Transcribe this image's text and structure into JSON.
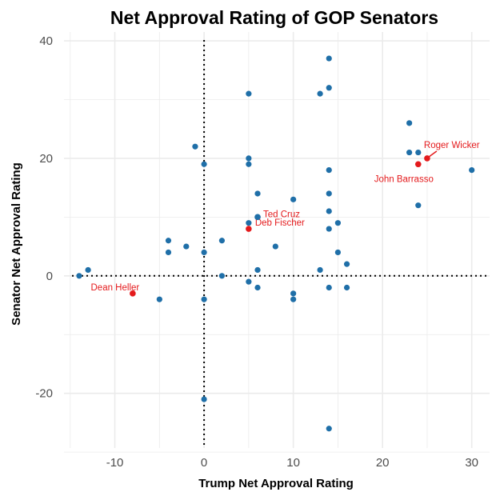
{
  "chart_data": {
    "type": "scatter",
    "title": "Net Approval Rating of GOP Senators",
    "xlabel": "Trump Net Approval Rating",
    "ylabel": "Senator Net Approval Rating",
    "xlim": [
      -15.7,
      32
    ],
    "ylim": [
      -29.3,
      41.5
    ],
    "xticks": [
      -10,
      0,
      10,
      20,
      30
    ],
    "yticks": [
      -20,
      0,
      20,
      40
    ],
    "grid": true,
    "reference_lines": {
      "x": 0,
      "y": 0,
      "style": "dotted"
    },
    "colors": {
      "default": "#1f6fa8",
      "highlight": "#e41a1c",
      "grid": "#ebebeb"
    },
    "points": [
      [
        -14,
        0
      ],
      [
        -13,
        1
      ],
      [
        -5,
        -4
      ],
      [
        -4,
        6
      ],
      [
        -4,
        4
      ],
      [
        -2,
        5
      ],
      [
        -1,
        22
      ],
      [
        0,
        19
      ],
      [
        0,
        4
      ],
      [
        0,
        -4
      ],
      [
        0,
        -21
      ],
      [
        2,
        6
      ],
      [
        2,
        0
      ],
      [
        5,
        31
      ],
      [
        5,
        20
      ],
      [
        5,
        19
      ],
      [
        5,
        9
      ],
      [
        5,
        -1
      ],
      [
        6,
        14
      ],
      [
        6,
        10
      ],
      [
        6,
        1
      ],
      [
        6,
        -2
      ],
      [
        8,
        5
      ],
      [
        10,
        13
      ],
      [
        10,
        -3
      ],
      [
        10,
        -4
      ],
      [
        13,
        31
      ],
      [
        13,
        1
      ],
      [
        14,
        37
      ],
      [
        14,
        32
      ],
      [
        14,
        18
      ],
      [
        14,
        14
      ],
      [
        14,
        11
      ],
      [
        14,
        8
      ],
      [
        14,
        -2
      ],
      [
        14,
        -26
      ],
      [
        15,
        9
      ],
      [
        15,
        4
      ],
      [
        16,
        2
      ],
      [
        16,
        -2
      ],
      [
        23,
        26
      ],
      [
        23,
        21
      ],
      [
        24,
        21
      ],
      [
        24,
        12
      ],
      [
        30,
        18
      ]
    ],
    "highlighted": [
      {
        "label": "Dean Heller",
        "x": -8,
        "y": -3,
        "color": "#e41a1c"
      },
      {
        "label": "Deb Fischer",
        "x": 5,
        "y": 8,
        "color": "#e41a1c"
      },
      {
        "label": "Ted Cruz",
        "x": 6,
        "y": 10,
        "color": "#1f6fa8"
      },
      {
        "label": "John Barrasso",
        "x": 24,
        "y": 19,
        "color": "#e41a1c"
      },
      {
        "label": "Roger Wicker",
        "x": 25,
        "y": 20,
        "color": "#e41a1c"
      }
    ]
  }
}
